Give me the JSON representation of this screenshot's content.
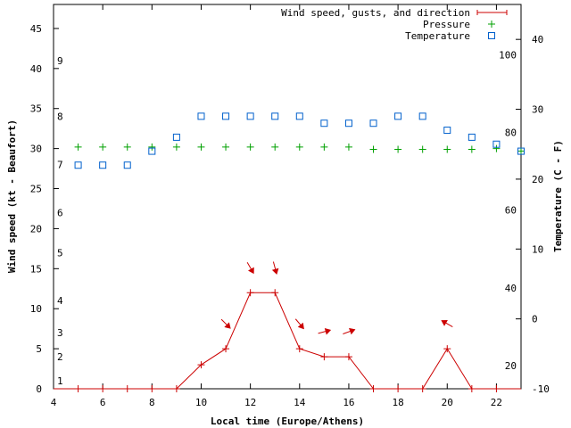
{
  "chart_data": {
    "type": "line",
    "xlabel": "Local time (Europe/Athens)",
    "ylabel_left": "Wind speed (kt - Beaufort)",
    "ylabel_right": "Temperature (C - F)",
    "xlim": [
      4,
      23
    ],
    "ylim_left": [
      0,
      48
    ],
    "ylim_right": [
      -10,
      45
    ],
    "x_ticks": [
      4,
      6,
      8,
      10,
      12,
      14,
      16,
      18,
      20,
      22
    ],
    "y_ticks_left": [
      0,
      5,
      10,
      15,
      20,
      25,
      30,
      35,
      40,
      45
    ],
    "y_ticks_right": [
      -10,
      0,
      10,
      20,
      30,
      40
    ],
    "beaufort_scale": [
      {
        "label": "1",
        "kt": 1
      },
      {
        "label": "2",
        "kt": 4
      },
      {
        "label": "3",
        "kt": 7
      },
      {
        "label": "4",
        "kt": 11
      },
      {
        "label": "5",
        "kt": 17
      },
      {
        "label": "6",
        "kt": 22
      },
      {
        "label": "7",
        "kt": 28
      },
      {
        "label": "8",
        "kt": 34
      },
      {
        "label": "9",
        "kt": 41
      }
    ],
    "fahrenheit_scale": [
      {
        "label": "20",
        "temp_c": -6.7
      },
      {
        "label": "40",
        "temp_c": 4.4
      },
      {
        "label": "60",
        "temp_c": 15.6
      },
      {
        "label": "80",
        "temp_c": 26.7
      },
      {
        "label": "100",
        "temp_c": 37.8
      }
    ],
    "series": [
      {
        "name": "Wind speed, gusts, and direction",
        "color": "#cc0000",
        "axis": "left",
        "x": [
          4,
          5,
          6,
          7,
          8,
          9,
          10,
          11,
          12,
          13,
          14,
          15,
          16,
          17,
          18,
          19,
          20,
          21,
          22,
          23
        ],
        "values": [
          0,
          0,
          0,
          0,
          0,
          0,
          3,
          5,
          12,
          12,
          5,
          4,
          4,
          0,
          0,
          0,
          5,
          0,
          0,
          0
        ]
      },
      {
        "name": "Pressure",
        "color": "#00a000",
        "axis": "left",
        "x": [
          5,
          6,
          7,
          8,
          9,
          10,
          11,
          12,
          13,
          14,
          15,
          16,
          17,
          18,
          19,
          20,
          21,
          22,
          23
        ],
        "values": [
          30.2,
          30.2,
          30.2,
          30.2,
          30.2,
          30.2,
          30.2,
          30.2,
          30.2,
          30.2,
          30.2,
          30.2,
          29.9,
          29.9,
          29.9,
          29.9,
          29.9,
          30.0,
          29.7
        ]
      },
      {
        "name": "Temperature",
        "color": "#0060cc",
        "axis": "right",
        "x": [
          5,
          6,
          7,
          8,
          9,
          10,
          11,
          12,
          13,
          14,
          15,
          16,
          17,
          18,
          19,
          20,
          21,
          22,
          23
        ],
        "values": [
          22,
          22,
          22,
          24,
          26,
          29,
          29,
          29,
          29,
          29,
          28,
          28,
          28,
          29,
          29,
          27,
          26,
          25,
          24
        ]
      }
    ],
    "wind_direction_arrows": [
      {
        "x": 11,
        "deg": 315
      },
      {
        "x": 12,
        "deg": 330
      },
      {
        "x": 13,
        "deg": 345
      },
      {
        "x": 14,
        "deg": 320
      },
      {
        "x": 15,
        "deg": 255
      },
      {
        "x": 16,
        "deg": 250
      },
      {
        "x": 20,
        "deg": 120
      }
    ],
    "legend_position": "top-right"
  }
}
